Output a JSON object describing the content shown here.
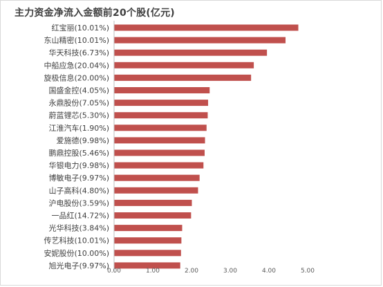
{
  "chart_data": {
    "type": "bar",
    "orientation": "horizontal",
    "title": "主力资金净流入金额前20个股(亿元)",
    "categories": [
      "红宝丽(10.01%)",
      "东山精密(10.01%)",
      "华天科技(6.73%)",
      "中船应急(20.04%)",
      "旋极信息(20.00%)",
      "国盛金控(4.05%)",
      "永鼎股份(7.05%)",
      "蔚蓝锂芯(5.30%)",
      "江淮汽车(1.90%)",
      "爱施德(9.98%)",
      "鹏鼎控股(5.46%)",
      "华银电力(9.98%)",
      "博敏电子(9.97%)",
      "山子高科(4.80%)",
      "沪电股份(3.59%)",
      "一品红(14.72%)",
      "光华科技(3.84%)",
      "传艺科技(10.01%)",
      "安妮股份(10.00%)",
      "旭光电子(9.97%)"
    ],
    "values": [
      4.75,
      4.42,
      3.94,
      3.6,
      3.53,
      2.46,
      2.42,
      2.41,
      2.38,
      2.34,
      2.33,
      2.3,
      2.2,
      2.16,
      2.0,
      1.98,
      1.75,
      1.73,
      1.72,
      1.7
    ],
    "xlim": [
      0,
      5
    ],
    "xticks": [
      "0.00",
      "1.00",
      "2.00",
      "3.00",
      "4.00",
      "5.00"
    ],
    "xlabel": "",
    "ylabel": "",
    "grid": false,
    "legend": "none",
    "bar_color": "#c0504d"
  }
}
